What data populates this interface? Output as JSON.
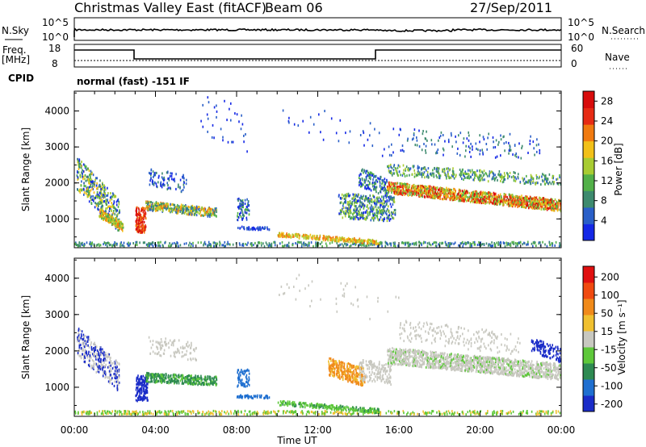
{
  "header": {
    "station": "Christmas Valley East (fitACF)",
    "beam": "Beam 06",
    "date": "27/Sep/2011"
  },
  "strip_panels": {
    "nsky": {
      "label": "N.Sky",
      "ticks": [
        "10^5",
        "10^0"
      ]
    },
    "nsearch": {
      "label": "N.Search",
      "ticks": [
        "10^5",
        "10^0"
      ]
    },
    "freq": {
      "label_line1": "Freq.",
      "label_line2": "[MHz]",
      "ticks": [
        "18",
        "8"
      ]
    },
    "nave": {
      "label": "Nave",
      "ticks": [
        "60",
        "0"
      ]
    },
    "cpid": {
      "label": "CPID",
      "value": "normal (fast) -151 IF"
    }
  },
  "chart_data": [
    {
      "type": "heatmap",
      "title": "",
      "xlabel": "",
      "ylabel": "Slant Range [km]",
      "x_ticks": [
        "00:00",
        "04:00",
        "08:00",
        "12:00",
        "16:00",
        "20:00",
        "00:00"
      ],
      "y_ticks": [
        1000,
        2000,
        3000,
        4000
      ],
      "ylim": [
        200,
        4550
      ],
      "colorbar": {
        "label": "Power [dB]",
        "ticks": [
          "4",
          "8",
          "12",
          "16",
          "20",
          "24",
          "28"
        ],
        "range": [
          0,
          30
        ],
        "colors": [
          "#1428e6",
          "#2a5fc8",
          "#3d8a6e",
          "#52b048",
          "#a8cc32",
          "#f2c018",
          "#f07a10",
          "#e62b14",
          "#d80c0c"
        ]
      }
    },
    {
      "type": "heatmap",
      "title": "",
      "xlabel": "Time UT",
      "ylabel": "Slant Range [km]",
      "x_ticks": [
        "00:00",
        "04:00",
        "08:00",
        "12:00",
        "16:00",
        "20:00",
        "00:00"
      ],
      "y_ticks": [
        1000,
        2000,
        3000,
        4000
      ],
      "ylim": [
        200,
        4550
      ],
      "colorbar": {
        "label": "Velocity [m s⁻¹]",
        "ticks": [
          "200",
          "100",
          "50",
          "15",
          "-15",
          "-50",
          "-100",
          "-200"
        ],
        "colors": [
          "#1a2cc8",
          "#1f6fd0",
          "#2e8a52",
          "#5ec83a",
          "#c8c8c0",
          "#f0c030",
          "#f08a1a",
          "#f04a10",
          "#e01010"
        ]
      }
    }
  ]
}
